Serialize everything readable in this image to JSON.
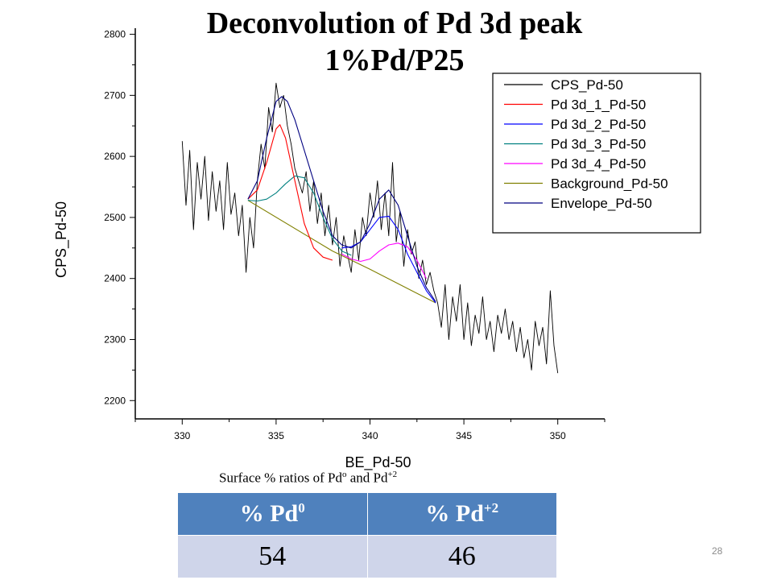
{
  "slide": {
    "title_line1": "Deconvolution of Pd 3d peak",
    "title_line2": "1%Pd/P25",
    "caption": {
      "prefix": "Surface % ratios of Pd",
      "sup1": "o",
      "middle": " and Pd",
      "sup2": "+2"
    },
    "table": {
      "headers": [
        {
          "base": "% Pd",
          "sup": "0"
        },
        {
          "base": "% Pd",
          "sup": "+2"
        }
      ],
      "values": [
        "54",
        "46"
      ],
      "header_color": "#4f81bd",
      "cell_color": "#cfd5ea"
    },
    "slide_number": "28"
  },
  "chart_data": {
    "type": "line",
    "xlabel": "BE_Pd-50",
    "ylabel": "CPS_Pd-50",
    "xlim": [
      327.5,
      352.5
    ],
    "ylim": [
      2170,
      2810
    ],
    "xticks": [
      330,
      335,
      340,
      345,
      350
    ],
    "yticks": [
      2200,
      2300,
      2400,
      2500,
      2600,
      2700,
      2800
    ],
    "legend_position": "top-right",
    "grid": false,
    "series": [
      {
        "name": "CPS_Pd-50",
        "color": "#000000",
        "description_x_range": [
          330,
          350
        ],
        "x": [
          330.0,
          330.2,
          330.4,
          330.6,
          330.8,
          331.0,
          331.2,
          331.4,
          331.6,
          331.8,
          332.0,
          332.2,
          332.4,
          332.6,
          332.8,
          333.0,
          333.2,
          333.4,
          333.6,
          333.8,
          334.0,
          334.2,
          334.4,
          334.6,
          334.8,
          335.0,
          335.2,
          335.4,
          335.6,
          335.8,
          336.0,
          336.2,
          336.4,
          336.6,
          336.8,
          337.0,
          337.2,
          337.4,
          337.6,
          337.8,
          338.0,
          338.2,
          338.4,
          338.6,
          338.8,
          339.0,
          339.2,
          339.4,
          339.6,
          339.8,
          340.0,
          340.2,
          340.4,
          340.6,
          340.8,
          341.0,
          341.2,
          341.4,
          341.6,
          341.8,
          342.0,
          342.2,
          342.4,
          342.6,
          342.8,
          343.0,
          343.2,
          343.4,
          343.6,
          343.8,
          344.0,
          344.2,
          344.4,
          344.6,
          344.8,
          345.0,
          345.2,
          345.4,
          345.6,
          345.8,
          346.0,
          346.2,
          346.4,
          346.6,
          346.8,
          347.0,
          347.2,
          347.4,
          347.6,
          347.8,
          348.0,
          348.2,
          348.4,
          348.6,
          348.8,
          349.0,
          349.2,
          349.4,
          349.6,
          349.8,
          350.0
        ],
        "y": [
          2625,
          2520,
          2610,
          2480,
          2590,
          2530,
          2600,
          2495,
          2575,
          2510,
          2560,
          2480,
          2590,
          2505,
          2540,
          2470,
          2520,
          2410,
          2500,
          2450,
          2560,
          2620,
          2580,
          2680,
          2640,
          2720,
          2680,
          2700,
          2650,
          2620,
          2580,
          2560,
          2540,
          2575,
          2510,
          2560,
          2490,
          2540,
          2470,
          2520,
          2455,
          2500,
          2420,
          2470,
          2440,
          2410,
          2480,
          2430,
          2500,
          2470,
          2540,
          2500,
          2560,
          2480,
          2540,
          2470,
          2590,
          2460,
          2510,
          2420,
          2480,
          2440,
          2460,
          2400,
          2430,
          2390,
          2410,
          2380,
          2360,
          2320,
          2390,
          2300,
          2370,
          2330,
          2390,
          2300,
          2360,
          2290,
          2340,
          2310,
          2370,
          2300,
          2330,
          2280,
          2340,
          2310,
          2350,
          2300,
          2330,
          2280,
          2320,
          2270,
          2300,
          2250,
          2330,
          2290,
          2320,
          2260,
          2380,
          2290,
          2245
        ]
      },
      {
        "name": "Pd 3d_1_Pd-50",
        "color": "#ff0000",
        "x": [
          333.5,
          334.0,
          334.5,
          335.0,
          335.2,
          335.5,
          336.0,
          336.5,
          337.0,
          337.5,
          338.0
        ],
        "y": [
          2530,
          2545,
          2590,
          2645,
          2652,
          2630,
          2560,
          2490,
          2450,
          2435,
          2430
        ]
      },
      {
        "name": "Pd 3d_2_Pd-50",
        "color": "#0000ff",
        "x": [
          338.5,
          339.0,
          339.5,
          340.0,
          340.5,
          341.0,
          341.5,
          342.0,
          342.5,
          343.0,
          343.5
        ],
        "y": [
          2450,
          2452,
          2460,
          2480,
          2500,
          2502,
          2480,
          2440,
          2410,
          2380,
          2360
        ]
      },
      {
        "name": "Pd 3d_3_Pd-50",
        "color": "#008080",
        "x": [
          333.5,
          334.0,
          334.5,
          335.0,
          335.5,
          336.0,
          336.5,
          337.0,
          337.5,
          338.0,
          338.5,
          339.0
        ],
        "y": [
          2528,
          2527,
          2530,
          2540,
          2555,
          2568,
          2565,
          2540,
          2500,
          2465,
          2445,
          2438
        ]
      },
      {
        "name": "Pd 3d_4_Pd-50",
        "color": "#ff00ff",
        "x": [
          338.5,
          339.0,
          339.5,
          340.0,
          340.5,
          341.0,
          341.5,
          342.0,
          342.5,
          343.0
        ],
        "y": [
          2440,
          2432,
          2428,
          2432,
          2445,
          2455,
          2458,
          2452,
          2430,
          2400
        ]
      },
      {
        "name": "Background_Pd-50",
        "color": "#808000",
        "x": [
          333.5,
          338.0,
          340.0,
          343.5
        ],
        "y": [
          2528,
          2445,
          2415,
          2360
        ]
      },
      {
        "name": "Envelope_Pd-50",
        "color": "#000080",
        "x": [
          333.5,
          334.0,
          334.5,
          335.0,
          335.3,
          335.6,
          336.0,
          336.5,
          337.0,
          337.5,
          338.0,
          338.5,
          339.0,
          339.5,
          340.0,
          340.5,
          341.0,
          341.5,
          342.0,
          342.5,
          343.0,
          343.5
        ],
        "y": [
          2530,
          2560,
          2630,
          2690,
          2698,
          2690,
          2660,
          2610,
          2560,
          2510,
          2470,
          2455,
          2450,
          2460,
          2490,
          2530,
          2545,
          2520,
          2470,
          2420,
          2385,
          2362
        ]
      }
    ]
  }
}
